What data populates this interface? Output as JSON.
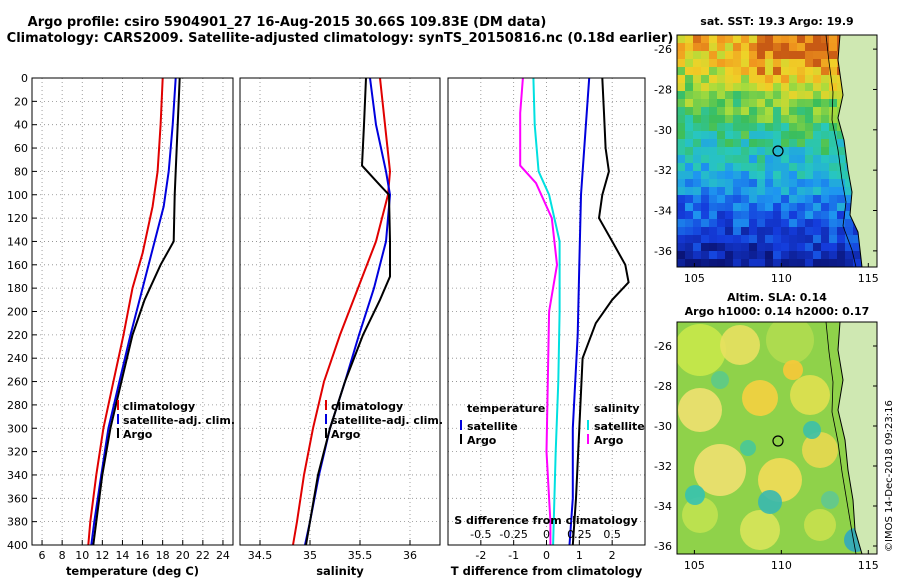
{
  "header": {
    "line1": "Argo profile: csiro 5904901_27 16-Aug-2015 30.66S 109.83E (DM data)",
    "line2": "Climatology: CARS2009. Satellite-adjusted climatology: synTS_20150816.nc (0.18d earlier)"
  },
  "colors": {
    "climatology": "#e00000",
    "satellite": "#0000dd",
    "argo": "#000000",
    "temp_diff": "#00e0e0",
    "salt_diff": "#ff00ff"
  },
  "chart_data": [
    {
      "type": "line",
      "title": "",
      "xlabel": "temperature (deg C)",
      "ylabel": "",
      "xlim": [
        5,
        25
      ],
      "ylim": [
        400,
        0
      ],
      "xticks": [
        "6",
        "8",
        "10",
        "12",
        "14",
        "16",
        "18",
        "20",
        "22",
        "24"
      ],
      "xtick_values": [
        6,
        8,
        10,
        12,
        14,
        16,
        18,
        20,
        22,
        24
      ],
      "yticks": [
        "0",
        "20",
        "40",
        "60",
        "80",
        "100",
        "120",
        "140",
        "160",
        "180",
        "200",
        "220",
        "240",
        "260",
        "280",
        "300",
        "320",
        "340",
        "360",
        "380",
        "400"
      ],
      "ytick_values": [
        0,
        20,
        40,
        60,
        80,
        100,
        120,
        140,
        160,
        180,
        200,
        220,
        240,
        260,
        280,
        300,
        320,
        340,
        360,
        380,
        400
      ],
      "legend": [
        "climatology",
        "satellite-adj. clim.",
        "Argo"
      ],
      "series": [
        {
          "name": "climatology",
          "depth": [
            0,
            40,
            80,
            110,
            150,
            180,
            220,
            260,
            300,
            340,
            380,
            400
          ],
          "values": [
            18.0,
            17.8,
            17.5,
            17.0,
            16.0,
            15.0,
            14.1,
            13.1,
            12.1,
            11.4,
            10.8,
            10.6
          ]
        },
        {
          "name": "satellite-adj. clim.",
          "depth": [
            0,
            40,
            80,
            110,
            150,
            180,
            220,
            260,
            300,
            340,
            380,
            400
          ],
          "values": [
            19.3,
            19.0,
            18.6,
            18.1,
            16.9,
            16.0,
            14.8,
            13.7,
            12.6,
            11.9,
            11.2,
            10.9
          ]
        },
        {
          "name": "Argo",
          "depth": [
            0,
            40,
            80,
            100,
            140,
            160,
            190,
            220,
            260,
            300,
            340,
            380,
            400
          ],
          "values": [
            19.7,
            19.5,
            19.3,
            19.2,
            19.1,
            17.8,
            16.2,
            15.0,
            13.9,
            12.8,
            12.0,
            11.4,
            11.1
          ]
        }
      ]
    },
    {
      "type": "line",
      "title": "",
      "xlabel": "salinity",
      "ylabel": "",
      "xlim": [
        34.3,
        36.3
      ],
      "ylim": [
        400,
        0
      ],
      "xticks": [
        "34.5",
        "35",
        "35.5",
        "36"
      ],
      "xtick_values": [
        34.5,
        35,
        35.5,
        36
      ],
      "legend": [
        "climatology",
        "satellite-adj. clim.",
        "Argo"
      ],
      "series": [
        {
          "name": "climatology",
          "depth": [
            0,
            40,
            80,
            100,
            140,
            180,
            220,
            260,
            300,
            340,
            380,
            400
          ],
          "values": [
            35.7,
            35.75,
            35.8,
            35.78,
            35.66,
            35.48,
            35.3,
            35.14,
            35.03,
            34.94,
            34.87,
            34.83
          ]
        },
        {
          "name": "satellite-adj. clim.",
          "depth": [
            0,
            40,
            80,
            100,
            140,
            180,
            220,
            260,
            300,
            340,
            380,
            400
          ],
          "values": [
            35.6,
            35.66,
            35.76,
            35.8,
            35.76,
            35.64,
            35.49,
            35.35,
            35.2,
            35.09,
            35.0,
            34.95
          ]
        },
        {
          "name": "Argo",
          "depth": [
            0,
            40,
            75,
            90,
            100,
            140,
            170,
            190,
            220,
            260,
            300,
            340,
            380,
            400
          ],
          "values": [
            35.56,
            35.54,
            35.52,
            35.68,
            35.79,
            35.8,
            35.8,
            35.7,
            35.53,
            35.35,
            35.2,
            35.08,
            35.0,
            34.96
          ]
        }
      ]
    },
    {
      "type": "line",
      "title": "",
      "xlabel": "T difference from climatology",
      "ylabel": "S difference from climatology",
      "xlim": [
        -3,
        3
      ],
      "ylim": [
        400,
        0
      ],
      "xticks": [
        "-2",
        "-1",
        "0",
        "1",
        "2"
      ],
      "xtick_values": [
        -2,
        -1,
        0,
        1,
        2
      ],
      "s_axis_ticks": [
        "-0.5",
        "-0.25",
        "0",
        "0.25",
        "0.5"
      ],
      "s_axis_values": [
        -0.5,
        -0.25,
        0,
        0.25,
        0.5
      ],
      "s_scale_note": "S difference plotted on same axis with 0.25 salinity = 1 deg C",
      "legend_temperature_title": "temperature",
      "legend_salinity_title": "salinity",
      "legend_items": [
        "satellite",
        "Argo"
      ],
      "series": [
        {
          "name": "T satellite",
          "depth": [
            0,
            40,
            100,
            160,
            220,
            300,
            360,
            400
          ],
          "values": [
            1.3,
            1.2,
            1.05,
            1.0,
            0.95,
            0.8,
            0.8,
            0.7
          ]
        },
        {
          "name": "T Argo",
          "depth": [
            0,
            30,
            60,
            80,
            100,
            120,
            140,
            160,
            175,
            190,
            210,
            240,
            300,
            360,
            400
          ],
          "values": [
            1.7,
            1.75,
            1.8,
            1.9,
            1.7,
            1.6,
            2.0,
            2.4,
            2.5,
            2.0,
            1.5,
            1.1,
            1.0,
            0.9,
            0.8
          ]
        },
        {
          "name": "S satellite",
          "depth": [
            0,
            40,
            80,
            100,
            140,
            200,
            260,
            320,
            400
          ],
          "values": [
            -0.1,
            -0.09,
            -0.06,
            0.02,
            0.1,
            0.1,
            0.09,
            0.07,
            0.05
          ]
        },
        {
          "name": "S Argo",
          "depth": [
            0,
            30,
            60,
            75,
            90,
            120,
            160,
            200,
            260,
            320,
            380,
            400
          ],
          "values": [
            -0.18,
            -0.2,
            -0.2,
            -0.2,
            -0.08,
            0.04,
            0.08,
            0.02,
            0.01,
            0.0,
            0.03,
            0.03
          ]
        }
      ]
    },
    {
      "type": "heatmap",
      "title": "sat. SST: 19.3 Argo: 19.9",
      "xlabel": "",
      "ylabel": "",
      "xlim": [
        104,
        115.5
      ],
      "ylim": [
        -36.8,
        -25.3
      ],
      "xticks": [
        "105",
        "110",
        "115"
      ],
      "xtick_values": [
        105,
        110,
        115
      ],
      "yticks": [
        "-26",
        "-28",
        "-30",
        "-32",
        "-34",
        "-36"
      ],
      "ytick_values": [
        -26,
        -28,
        -30,
        -32,
        -34,
        -36
      ],
      "marker": {
        "lon": 109.83,
        "lat": -30.66
      }
    },
    {
      "type": "heatmap",
      "title": "Altim. SLA: 0.14",
      "subtitle": "Argo h1000: 0.14 h2000: 0.17",
      "xlabel": "",
      "ylabel": "",
      "xlim": [
        104,
        115.5
      ],
      "ylim": [
        -36.4,
        -24.8
      ],
      "xticks": [
        "105",
        "110",
        "115"
      ],
      "xtick_values": [
        105,
        110,
        115
      ],
      "yticks": [
        "-26",
        "-28",
        "-30",
        "-32",
        "-34",
        "-36"
      ],
      "ytick_values": [
        -26,
        -28,
        -30,
        -32,
        -34,
        -36
      ],
      "marker": {
        "lon": 109.83,
        "lat": -30.66
      }
    }
  ],
  "credit": "©IMOS 14-Dec-2018 09:23:16"
}
